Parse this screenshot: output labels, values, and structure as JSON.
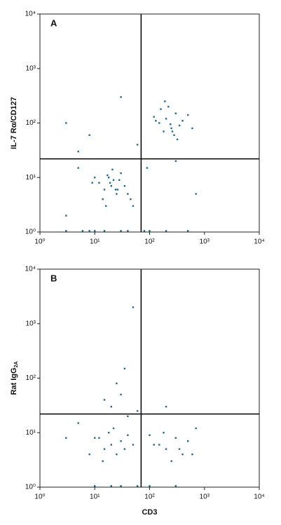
{
  "chart_data": [
    {
      "type": "scatter",
      "title": "A",
      "ylabel": "IL-7 Rα/CD127",
      "log": true,
      "color": "#1f6b8c",
      "xlim": [
        1,
        10000
      ],
      "ylim": [
        1,
        10000
      ],
      "xticks": [
        {
          "value": 1,
          "label": "10⁰"
        },
        {
          "value": 10,
          "label": "10¹"
        },
        {
          "value": 100,
          "label": "10²"
        },
        {
          "value": 1000,
          "label": "10³"
        },
        {
          "value": 10000,
          "label": "10⁴"
        }
      ],
      "yticks": [
        {
          "value": 1,
          "label": "10⁰"
        },
        {
          "value": 10,
          "label": "10¹"
        },
        {
          "value": 100,
          "label": "10²"
        },
        {
          "value": 1000,
          "label": "10³"
        },
        {
          "value": 10000,
          "label": "10⁴"
        }
      ],
      "quadrant": {
        "x": 70,
        "y": 22
      },
      "x": [
        12,
        15,
        18,
        20,
        22,
        25,
        30,
        14,
        17,
        19,
        24,
        28,
        35,
        10,
        40,
        16,
        21,
        26,
        9,
        45,
        150,
        200,
        250,
        300,
        180,
        220,
        350,
        400,
        120,
        280,
        160,
        240,
        500,
        320,
        190,
        600,
        130,
        260,
        5,
        8,
        60,
        90,
        300,
        700,
        3,
        5,
        50,
        3,
        30,
        8,
        100,
        30,
        500,
        80,
        15,
        3,
        6,
        200,
        40,
        10
      ],
      "y": [
        8,
        6,
        10,
        7,
        9,
        5,
        12,
        4,
        11,
        8,
        6,
        9,
        7,
        10,
        5,
        3,
        14,
        6,
        8,
        4,
        100,
        120,
        80,
        150,
        70,
        200,
        90,
        110,
        130,
        60,
        180,
        95,
        140,
        50,
        250,
        80,
        110,
        70,
        30,
        60,
        40,
        15,
        20,
        5,
        2,
        15,
        3,
        100,
        300,
        1.05,
        1.05,
        1.05,
        1.05,
        1.05,
        1.05,
        1.05,
        1.05,
        1.05,
        1.05,
        1.05
      ]
    },
    {
      "type": "scatter",
      "title": "B",
      "ylabel": "Rat IgG",
      "ylabel_sub": "2A",
      "xlabel": "CD3",
      "log": true,
      "color": "#1f6b8c",
      "xlim": [
        1,
        10000
      ],
      "ylim": [
        1,
        10000
      ],
      "xticks": [
        {
          "value": 1,
          "label": "10⁰"
        },
        {
          "value": 10,
          "label": "10¹"
        },
        {
          "value": 100,
          "label": "10²"
        },
        {
          "value": 1000,
          "label": "10³"
        },
        {
          "value": 10000,
          "label": "10⁴"
        }
      ],
      "yticks": [
        {
          "value": 1,
          "label": "10⁰"
        },
        {
          "value": 10,
          "label": "10¹"
        },
        {
          "value": 100,
          "label": "10²"
        },
        {
          "value": 1000,
          "label": "10³"
        },
        {
          "value": 10000,
          "label": "10⁴"
        }
      ],
      "quadrant": {
        "x": 70,
        "y": 22
      },
      "x": [
        12,
        15,
        18,
        20,
        25,
        30,
        40,
        14,
        22,
        35,
        50,
        10,
        8,
        150,
        200,
        300,
        400,
        500,
        250,
        180,
        350,
        120,
        600,
        100,
        20,
        30,
        25,
        40,
        15,
        60,
        35,
        5,
        200,
        3,
        700,
        50,
        20,
        60,
        100,
        10,
        300,
        30
      ],
      "y": [
        8,
        5,
        10,
        6,
        4,
        7,
        9,
        3,
        12,
        5,
        6,
        8,
        4,
        6,
        5,
        8,
        4,
        7,
        3,
        10,
        5,
        6,
        4,
        9,
        30,
        50,
        80,
        20,
        40,
        25,
        150,
        15,
        30,
        8,
        12,
        2000,
        1.05,
        1.05,
        1.05,
        1.05,
        1.05,
        1.05
      ]
    }
  ]
}
